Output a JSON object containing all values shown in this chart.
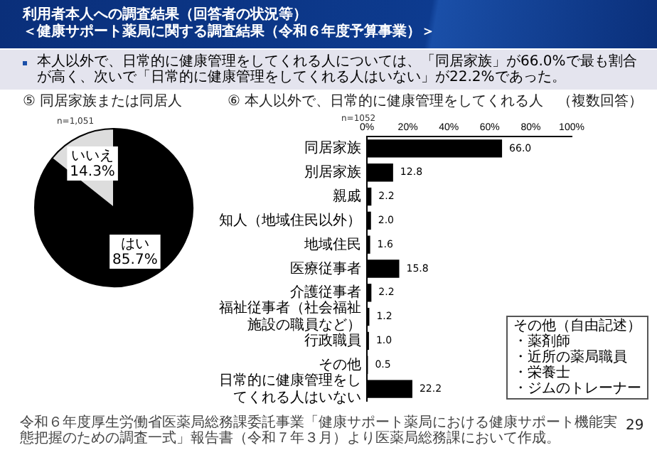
{
  "chart_data": [
    {
      "type": "pie",
      "title": "⑤ 同居家族または同居人",
      "categories": [
        "はい",
        "いいえ"
      ],
      "values": [
        85.7,
        14.3
      ],
      "value_labels": [
        "85.7%",
        "14.3%"
      ],
      "colors": [
        "#000000",
        "#dddddd"
      ],
      "legend": false,
      "annotations": [
        "利用者本人への調査結果（回答者の状況等）",
        "＜健康サポート薬局に関する調査結果（令和６年度予算事業）＞",
        "本人以外で、日常的に健康管理をしてくれる人については、「同居家族」が66.0%で最も割合が高く、次いで「日常的に健康管理をしてくれる人はいない」が22.2%であった。",
        "n=1,051"
      ]
    },
    {
      "type": "bar",
      "orientation": "horizontal",
      "title": "⑥ 本人以外で、日常的に健康管理をしてくれる人　（複数回答）",
      "categories": [
        "同居家族",
        "別居家族",
        "親戚",
        "知人（地域住民以外）",
        "地域住民",
        "医療従事者",
        "介護従事者",
        "福祉従事者（社会福祉施設の職員など）",
        "行政職員",
        "その他",
        "日常的に健康管理をしてくれる人はいない"
      ],
      "values": [
        66.0,
        12.8,
        2.2,
        2.0,
        1.6,
        15.8,
        2.2,
        1.2,
        1.0,
        0.5,
        22.2
      ],
      "value_labels": [
        "66.0",
        "12.8",
        "2.2",
        "2.0",
        "1.6",
        "15.8",
        "2.2",
        "1.2",
        "1.0",
        "0.5",
        "22.2"
      ],
      "color": "#000000",
      "xlim": [
        0,
        100
      ],
      "xticks": [
        {
          "value": 0,
          "label": "0%"
        },
        {
          "value": 20,
          "label": "20%"
        },
        {
          "value": 40,
          "label": "40%"
        },
        {
          "value": 60,
          "label": "60%"
        },
        {
          "value": 80,
          "label": "80%"
        },
        {
          "value": 100,
          "label": "100%"
        }
      ],
      "grid": false,
      "legend": false,
      "annotations": [
        "n=1052",
        "その他（自由記述）",
        "・薬剤師",
        "・近所の薬局職員",
        "・栄養士",
        "・ジムのトレーナー",
        "令和６年度厚生労働省医薬局総務課委託事業「健康サポート薬局における健康サポート機能実態把握のための調査一式」報告書（令和７年３月）より医薬局総務課において作成。",
        "29"
      ]
    }
  ]
}
